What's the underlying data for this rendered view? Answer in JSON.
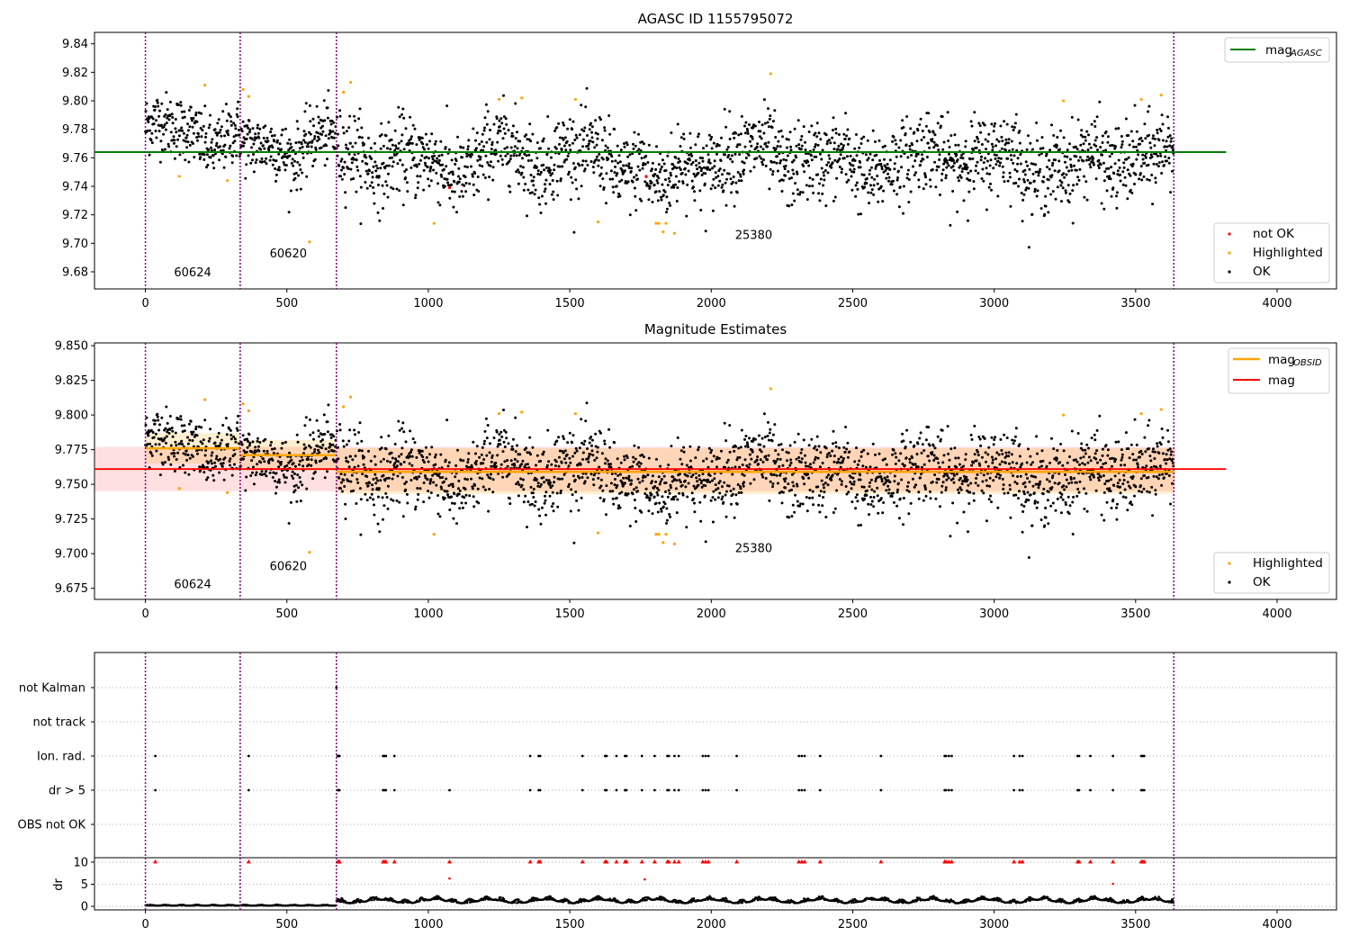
{
  "chart_data": [
    {
      "type": "scatter",
      "title": "AGASC ID 1155795072",
      "xlim": [
        -180,
        4210
      ],
      "ylim": [
        9.668,
        9.848
      ],
      "xticks": [
        0,
        500,
        1000,
        1500,
        2000,
        2500,
        3000,
        3500,
        4000
      ],
      "yticks": [
        9.68,
        9.7,
        9.72,
        9.74,
        9.76,
        9.78,
        9.8,
        9.82,
        9.84
      ],
      "obsid_boundaries": [
        0,
        335,
        675,
        3635
      ],
      "obsid_labels": [
        {
          "text": "60624",
          "x": 167,
          "y": 9.677
        },
        {
          "text": "60620",
          "x": 505,
          "y": 9.69
        },
        {
          "text": "25380",
          "x": 2150,
          "y": 9.703
        }
      ],
      "mag_agasc": 9.764,
      "mag_agasc_color": "#008000",
      "legend_top": [
        {
          "label": "mag",
          "sub": "AGASC",
          "color": "#008000"
        }
      ],
      "legend_bottom": [
        {
          "label": "not OK",
          "color": "#ff0000"
        },
        {
          "label": "Highlighted",
          "color": "#ffa500"
        },
        {
          "label": "OK",
          "color": "#000000"
        }
      ],
      "segments": [
        {
          "x0": 0,
          "x1": 335,
          "mean": 9.776,
          "sd": 0.011
        },
        {
          "x0": 335,
          "x1": 675,
          "mean": 9.77,
          "sd": 0.011
        },
        {
          "x0": 675,
          "x1": 3635,
          "mean": 9.758,
          "sd": 0.014
        }
      ],
      "highlighted_points": [
        [
          120,
          9.747
        ],
        [
          210,
          9.811
        ],
        [
          290,
          9.744
        ],
        [
          345,
          9.808
        ],
        [
          365,
          9.803
        ],
        [
          580,
          9.701
        ],
        [
          700,
          9.806
        ],
        [
          725,
          9.813
        ],
        [
          1020,
          9.714
        ],
        [
          1250,
          9.801
        ],
        [
          1330,
          9.802
        ],
        [
          1520,
          9.801
        ],
        [
          1600,
          9.715
        ],
        [
          1805,
          9.714
        ],
        [
          1815,
          9.714
        ],
        [
          1830,
          9.708
        ],
        [
          1840,
          9.714
        ],
        [
          1870,
          9.707
        ],
        [
          2210,
          9.819
        ],
        [
          3245,
          9.8
        ],
        [
          3520,
          9.801
        ],
        [
          3590,
          9.804
        ]
      ],
      "not_ok_points": [
        [
          1770,
          9.747
        ],
        [
          1075,
          9.739
        ]
      ]
    },
    {
      "type": "scatter",
      "title": "Magnitude Estimates",
      "xlim": [
        -180,
        4210
      ],
      "ylim": [
        9.667,
        9.852
      ],
      "xticks": [
        0,
        500,
        1000,
        1500,
        2000,
        2500,
        3000,
        3500,
        4000
      ],
      "yticks": [
        9.675,
        9.7,
        9.725,
        9.75,
        9.775,
        9.8,
        9.825,
        9.85
      ],
      "ytick_labels": [
        "9.675",
        "9.700",
        "9.725",
        "9.750",
        "9.775",
        "9.800",
        "9.825",
        "9.850"
      ],
      "obsid_labels": [
        {
          "text": "60624",
          "x": 167,
          "y": 9.675
        },
        {
          "text": "60620",
          "x": 505,
          "y": 9.688
        },
        {
          "text": "25380",
          "x": 2150,
          "y": 9.701
        }
      ],
      "mag": 9.761,
      "mag_band": [
        9.745,
        9.777
      ],
      "mag_color": "#ff0000",
      "mag_obsid_color": "#ffa500",
      "mag_obsid": [
        {
          "x0": 0,
          "x1": 335,
          "mean": 9.776,
          "band": [
            9.765,
            9.787
          ]
        },
        {
          "x0": 335,
          "x1": 675,
          "mean": 9.771,
          "band": [
            9.76,
            9.782
          ]
        },
        {
          "x0": 675,
          "x1": 3635,
          "mean": 9.759,
          "band": [
            9.743,
            9.776
          ]
        }
      ],
      "legend_top": [
        {
          "label": "mag",
          "sub": "OBSID",
          "color": "#ffa500"
        },
        {
          "label": "mag",
          "sub": "",
          "color": "#ff0000"
        }
      ],
      "legend_bottom": [
        {
          "label": "Highlighted",
          "color": "#ffa500"
        },
        {
          "label": "OK",
          "color": "#000000"
        }
      ]
    },
    {
      "type": "scatter",
      "title": "",
      "xlim": [
        -180,
        4210
      ],
      "flag_rows": [
        "not Kalman",
        "not track",
        "Ion. rad.",
        "dr > 5",
        "OBS not OK"
      ],
      "flag_events": {
        "not Kalman": [
          675
        ],
        "not track": [],
        "Ion. rad.": [
          35,
          365,
          680,
          683,
          686,
          840,
          845,
          850,
          880,
          1360,
          1390,
          1395,
          1545,
          1625,
          1630,
          1665,
          1695,
          1700,
          1755,
          1800,
          1845,
          1850,
          1870,
          1885,
          1970,
          1980,
          1990,
          2090,
          2310,
          2320,
          2330,
          2385,
          2600,
          2825,
          2830,
          2840,
          2850,
          3070,
          3090,
          3100,
          3295,
          3300,
          3340,
          3420,
          3520,
          3525,
          3530
        ],
        "dr > 5": [
          35,
          365,
          680,
          683,
          686,
          840,
          845,
          850,
          880,
          1075,
          1360,
          1390,
          1395,
          1545,
          1625,
          1630,
          1665,
          1695,
          1700,
          1755,
          1800,
          1845,
          1850,
          1870,
          1885,
          1970,
          1980,
          1990,
          2090,
          2310,
          2320,
          2330,
          2385,
          2600,
          2825,
          2830,
          2840,
          2850,
          3070,
          3090,
          3100,
          3295,
          3300,
          3340,
          3420,
          3520,
          3525,
          3530
        ],
        "OBS not OK": []
      },
      "dr_ylim": [
        -0.8,
        11
      ],
      "dr_yticks": [
        0,
        5,
        10
      ],
      "dr_ylabel": "dr",
      "dr_clip_value": 10,
      "dr_outliers": [
        [
          1075,
          6.3
        ],
        [
          1765,
          6.1
        ],
        [
          3420,
          5.1
        ]
      ],
      "dr_segments": [
        {
          "x0": 0,
          "x1": 675,
          "level": 0.15,
          "amp": 0.25
        },
        {
          "x0": 675,
          "x1": 3635,
          "level": 1.1,
          "amp": 0.9
        }
      ]
    }
  ]
}
